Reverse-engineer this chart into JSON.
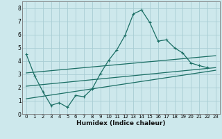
{
  "xlabel": "Humidex (Indice chaleur)",
  "bg_color": "#cde8ec",
  "grid_color": "#a8cdd4",
  "line_color": "#1a6e64",
  "xlim": [
    -0.5,
    23.5
  ],
  "ylim": [
    0,
    8.5
  ],
  "xticks": [
    0,
    1,
    2,
    3,
    4,
    5,
    6,
    7,
    8,
    9,
    10,
    11,
    12,
    13,
    14,
    15,
    16,
    17,
    18,
    19,
    20,
    21,
    22,
    23
  ],
  "yticks": [
    0,
    1,
    2,
    3,
    4,
    5,
    6,
    7,
    8
  ],
  "main_x": [
    0,
    1,
    2,
    3,
    4,
    5,
    6,
    7,
    8,
    9,
    10,
    11,
    12,
    13,
    14,
    15,
    16,
    17,
    18,
    19,
    20,
    21,
    22
  ],
  "main_y": [
    4.5,
    2.9,
    1.7,
    0.65,
    0.85,
    0.5,
    1.4,
    1.3,
    1.9,
    3.05,
    4.05,
    4.85,
    5.95,
    7.55,
    7.85,
    6.9,
    5.5,
    5.6,
    5.0,
    4.6,
    3.85,
    3.65,
    3.5
  ],
  "line1_x": [
    0,
    23
  ],
  "line1_y": [
    3.1,
    4.4
  ],
  "line2_x": [
    0,
    23
  ],
  "line2_y": [
    2.1,
    3.5
  ],
  "line3_x": [
    0,
    23
  ],
  "line3_y": [
    1.15,
    3.3
  ]
}
